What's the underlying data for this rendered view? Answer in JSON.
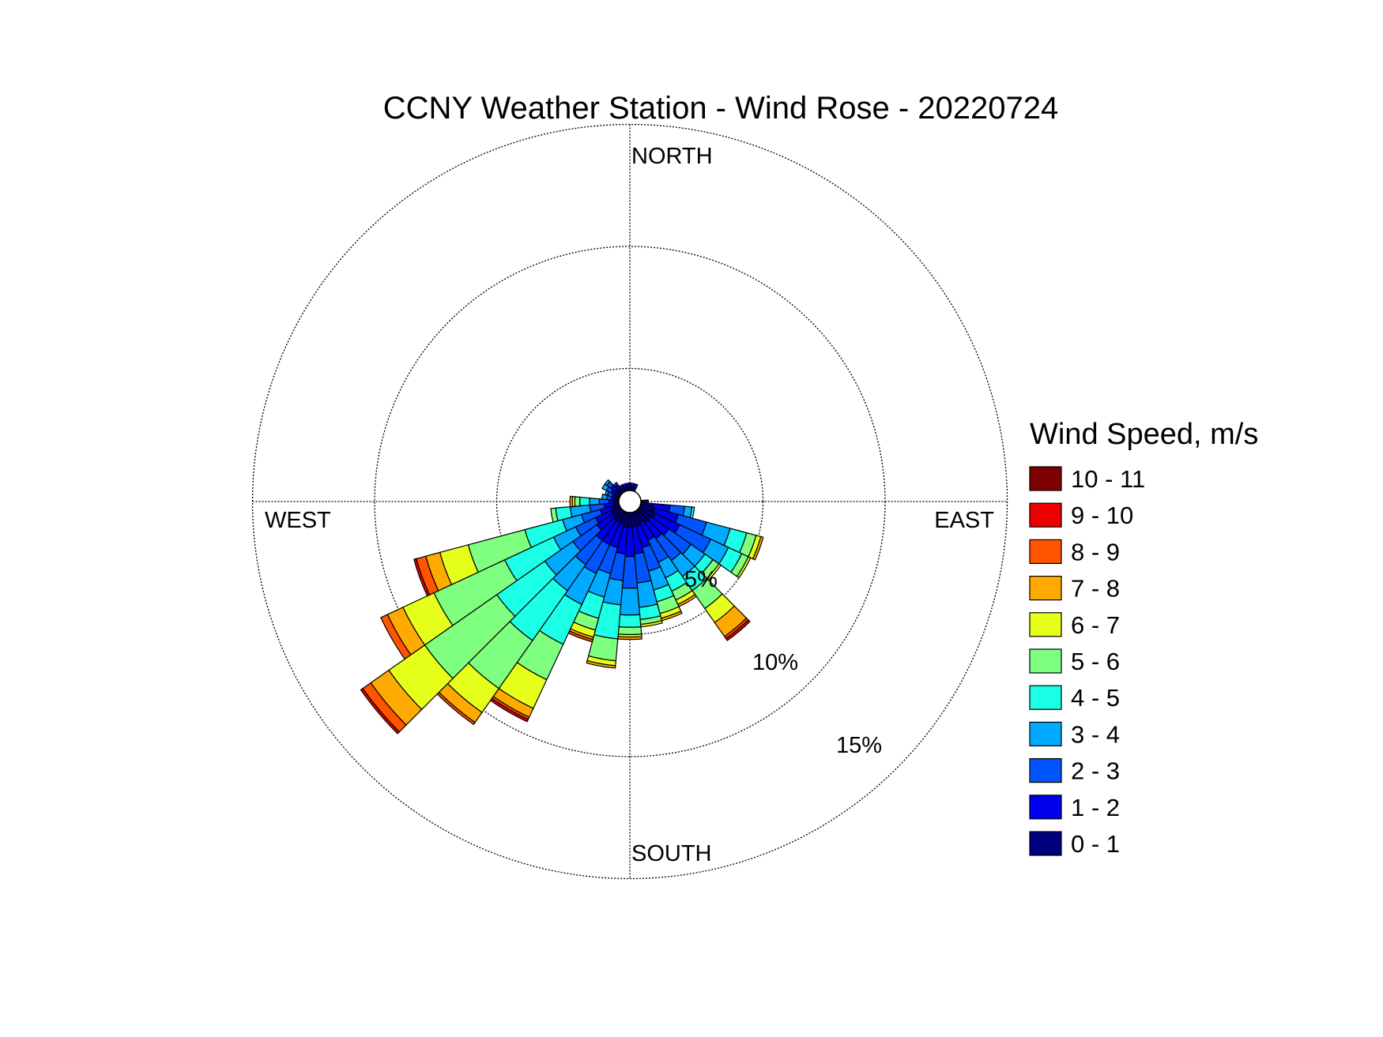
{
  "chart_data": {
    "type": "windrose",
    "title": "CCNY Weather Station - Wind Rose - 20220724",
    "direction_labels": {
      "north": "NORTH",
      "south": "SOUTH",
      "east": "EAST",
      "west": "WEST"
    },
    "radial_unit": "percent frequency",
    "radial_ticks": [
      {
        "value": 5,
        "label": "5%"
      },
      {
        "value": 10,
        "label": "10%"
      },
      {
        "value": 15,
        "label": "15%"
      }
    ],
    "legend": {
      "title": "Wind Speed, m/s",
      "placement": "right",
      "bins": [
        {
          "label": "10 - 11",
          "color": "#7f0000"
        },
        {
          "label": "9 - 10",
          "color": "#ee0000"
        },
        {
          "label": "8 - 9",
          "color": "#ff5500"
        },
        {
          "label": "7 - 8",
          "color": "#ffaa00"
        },
        {
          "label": "6 - 7",
          "color": "#e6ff1a"
        },
        {
          "label": "5 - 6",
          "color": "#7fff7f"
        },
        {
          "label": "4 - 5",
          "color": "#1affe6"
        },
        {
          "label": "3 - 4",
          "color": "#00aaff"
        },
        {
          "label": "2 - 3",
          "color": "#0055ff"
        },
        {
          "label": "1 - 2",
          "color": "#0000ee"
        },
        {
          "label": "0 - 1",
          "color": "#00007f"
        }
      ]
    },
    "speed_bins_low_to_high": [
      "0 - 1",
      "1 - 2",
      "2 - 3",
      "3 - 4",
      "4 - 5",
      "5 - 6",
      "6 - 7",
      "7 - 8",
      "8 - 9",
      "9 - 10",
      "10 - 11"
    ],
    "sector_width_deg": 10,
    "sectors": [
      {
        "dir": 0,
        "cum": [
          0.2,
          0.3
        ]
      },
      {
        "dir": 10,
        "cum": [
          0.15,
          0.3
        ]
      },
      {
        "dir": 20,
        "cum": [
          0.15,
          0.3
        ]
      },
      {
        "dir": 90,
        "cum": [
          0.15,
          0.3
        ]
      },
      {
        "dir": 100,
        "cum": [
          0.5,
          1.2,
          1.8,
          2.1,
          2.2
        ]
      },
      {
        "dir": 110,
        "cum": [
          0.6,
          1.6,
          2.8,
          3.8,
          4.5,
          4.9,
          5.1,
          5.2
        ]
      },
      {
        "dir": 120,
        "cum": [
          0.7,
          1.8,
          3.2,
          4.0,
          4.6,
          4.9,
          5.0
        ]
      },
      {
        "dir": 130,
        "cum": [
          0.6,
          1.5,
          2.6,
          3.3,
          3.7,
          4.0,
          4.1
        ]
      },
      {
        "dir": 140,
        "cum": [
          0.6,
          1.4,
          2.5,
          3.3,
          4.0,
          4.9,
          5.6,
          6.3,
          6.4,
          6.5
        ]
      },
      {
        "dir": 150,
        "cum": [
          0.5,
          1.3,
          2.3,
          3.0,
          3.6,
          4.0,
          4.2,
          4.3
        ]
      },
      {
        "dir": 160,
        "cum": [
          0.6,
          1.5,
          2.5,
          3.3,
          3.8,
          4.3,
          4.5,
          4.6
        ]
      },
      {
        "dir": 170,
        "cum": [
          0.6,
          1.7,
          2.9,
          3.9,
          4.4,
          4.6,
          4.7
        ]
      },
      {
        "dir": 180,
        "cum": [
          0.6,
          1.8,
          3.1,
          4.2,
          4.7,
          5.0,
          5.1,
          5.2
        ]
      },
      {
        "dir": 190,
        "cum": [
          0.6,
          1.7,
          2.8,
          3.8,
          5.2,
          6.1,
          6.3,
          6.4
        ]
      },
      {
        "dir": 200,
        "cum": [
          0.5,
          1.5,
          2.6,
          3.6,
          4.5,
          5.0,
          5.3,
          5.4,
          5.5
        ]
      },
      {
        "dir": 210,
        "cum": [
          0.5,
          1.5,
          2.8,
          4.2,
          6.0,
          7.6,
          8.9,
          9.3,
          9.4,
          9.5
        ]
      },
      {
        "dir": 220,
        "cum": [
          0.5,
          1.5,
          2.7,
          4.0,
          6.5,
          8.9,
          10.1,
          10.6,
          10.7
        ]
      },
      {
        "dir": 230,
        "cum": [
          0.4,
          1.2,
          2.4,
          3.8,
          6.2,
          9.8,
          11.6,
          12.5,
          12.9,
          13.0
        ]
      },
      {
        "dir": 240,
        "cum": [
          0.4,
          1.1,
          2.0,
          3.0,
          5.2,
          8.4,
          9.8,
          10.5,
          10.8
        ]
      },
      {
        "dir": 250,
        "cum": [
          0.3,
          0.8,
          1.6,
          2.4,
          4.0,
          6.4,
          7.6,
          8.2,
          8.6,
          8.7
        ]
      },
      {
        "dir": 260,
        "cum": [
          0.2,
          0.6,
          1.2,
          2.0,
          2.6,
          2.8
        ]
      },
      {
        "dir": 270,
        "cum": [
          0.2,
          0.4,
          0.8,
          1.2,
          1.6,
          1.8,
          1.9,
          2.0
        ]
      },
      {
        "dir": 280,
        "cum": [
          0.15,
          0.3,
          0.5,
          0.7
        ]
      },
      {
        "dir": 290,
        "cum": [
          0.15,
          0.3,
          0.5,
          0.6
        ]
      },
      {
        "dir": 300,
        "cum": [
          0.2,
          0.4,
          0.6,
          0.8
        ]
      },
      {
        "dir": 310,
        "cum": [
          0.25,
          0.5,
          0.7,
          0.8
        ]
      },
      {
        "dir": 320,
        "cum": [
          0.2,
          0.4,
          0.5
        ]
      },
      {
        "dir": 330,
        "cum": [
          0.15,
          0.3
        ]
      },
      {
        "dir": 340,
        "cum": [
          0.15,
          0.3
        ]
      },
      {
        "dir": 350,
        "cum": [
          0.2,
          0.3
        ]
      }
    ]
  }
}
